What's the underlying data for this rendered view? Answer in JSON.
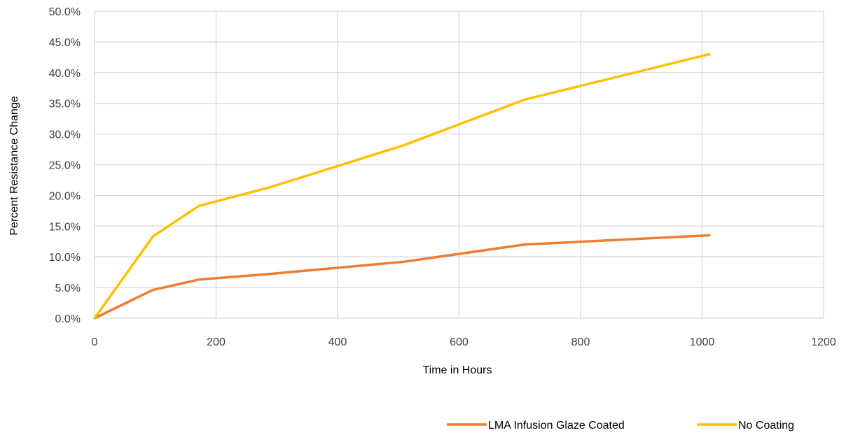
{
  "chart_data": {
    "type": "line",
    "title": "",
    "xlabel": "Time in Hours",
    "ylabel": "Percent Resistance Change",
    "xlim": [
      0,
      1200
    ],
    "ylim": [
      0,
      0.5
    ],
    "x_ticks": [
      "0",
      "200",
      "400",
      "600",
      "800",
      "1000",
      "1200"
    ],
    "y_ticks": [
      "0.0%",
      "5.0%",
      "10.0%",
      "15.0%",
      "20.0%",
      "25.0%",
      "30.0%",
      "35.0%",
      "40.0%",
      "45.0%",
      "50.0%"
    ],
    "grid": true,
    "legend_position": "bottom-right",
    "series": [
      {
        "name": "LMA Infusion Glaze Coated",
        "color": "#ED7D31",
        "x": [
          0,
          96,
          172,
          288,
          510,
          708,
          1012
        ],
        "y": [
          0.0,
          0.046,
          0.063,
          0.072,
          0.092,
          0.12,
          0.135
        ]
      },
      {
        "name": "No Coating",
        "color": "#FFC000",
        "x": [
          0,
          96,
          172,
          288,
          510,
          708,
          1012
        ],
        "y": [
          0.0,
          0.133,
          0.183,
          0.213,
          0.282,
          0.356,
          0.43
        ]
      }
    ]
  }
}
